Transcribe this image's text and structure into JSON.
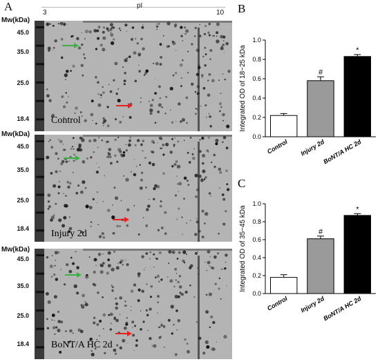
{
  "panel_a": {
    "letter": "A",
    "pi_label": "pI",
    "pi_start": "3",
    "pi_end": "10",
    "mw_title": "Mw(kDa)",
    "gels": [
      {
        "label": "Control",
        "ticks": [
          "45.0",
          "35.0",
          "25.0",
          "18.4"
        ]
      },
      {
        "label": "Injury 2d",
        "ticks": [
          "45.0",
          "35.0",
          "25.0",
          "18.4"
        ]
      },
      {
        "label": "BoNT/A HC 2d",
        "ticks": [
          "45.0",
          "35.0",
          "25.0",
          "18.4"
        ]
      }
    ],
    "arrow_colors": {
      "green": "#3cb043",
      "red": "#e82020"
    }
  },
  "chart_data": [
    {
      "type": "bar",
      "panel": "B",
      "categories": [
        "Control",
        "Injury 2d",
        "BoNT/A HC 2d"
      ],
      "values": [
        0.22,
        0.58,
        0.83
      ],
      "errors": [
        0.02,
        0.04,
        0.02
      ],
      "markers": [
        "",
        "#",
        "*"
      ],
      "colors": [
        "#ffffff",
        "#9a9a9a",
        "#000000"
      ],
      "ylabel": "Integrated OD of 18~25 kDa",
      "ylim": [
        0,
        1.0
      ],
      "yticks": [
        "0.0",
        "0.2",
        "0.4",
        "0.6",
        "0.8",
        "1.0"
      ]
    },
    {
      "type": "bar",
      "panel": "C",
      "categories": [
        "Control",
        "Injury 2d",
        "BoNT/A HC 2d"
      ],
      "values": [
        0.18,
        0.61,
        0.87
      ],
      "errors": [
        0.03,
        0.03,
        0.02
      ],
      "markers": [
        "",
        "#",
        "*"
      ],
      "colors": [
        "#ffffff",
        "#9a9a9a",
        "#000000"
      ],
      "ylabel": "Integrated OD of 35~45 kDa",
      "ylim": [
        0,
        1.0
      ],
      "yticks": [
        "0.0",
        "0.2",
        "0.4",
        "0.6",
        "0.8",
        "1.0"
      ]
    }
  ]
}
